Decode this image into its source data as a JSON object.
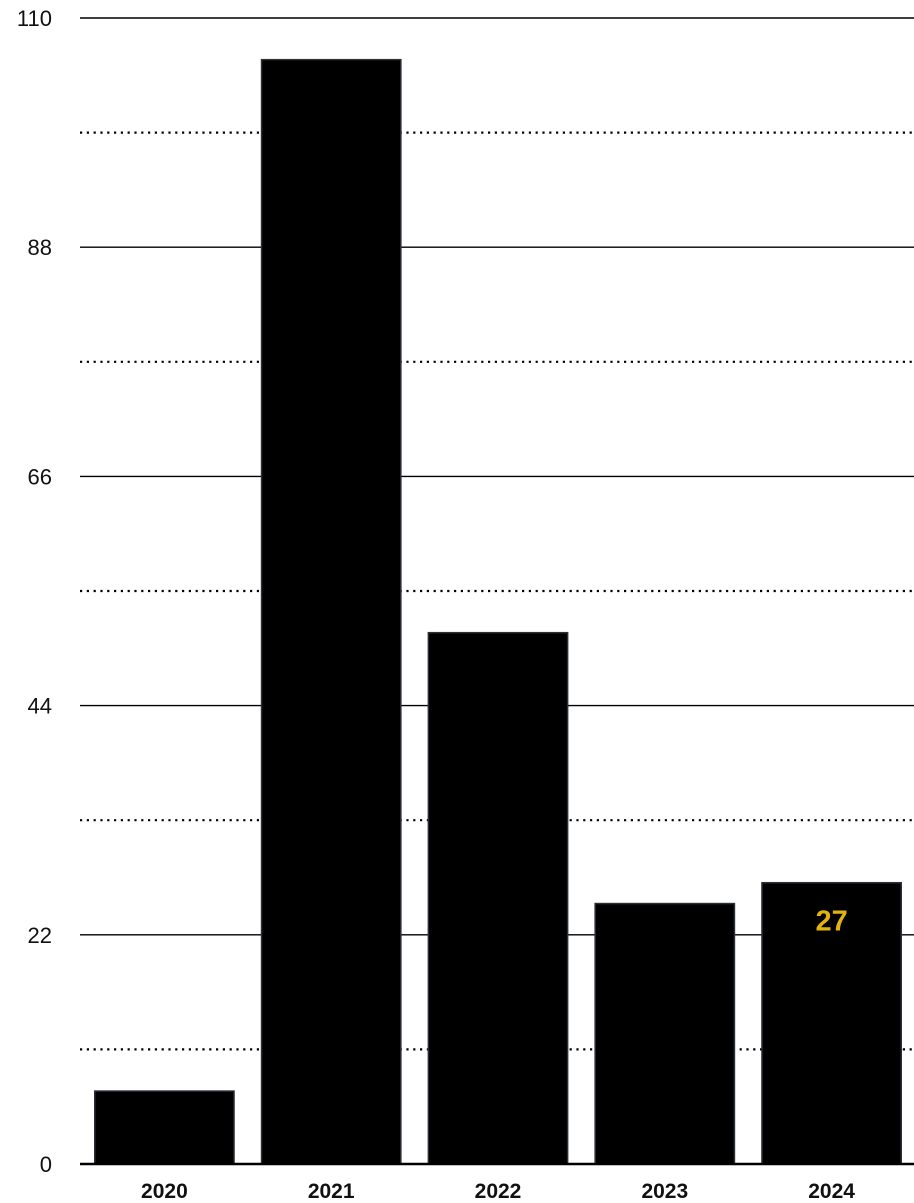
{
  "chart_data": {
    "type": "bar",
    "categories": [
      "2020",
      "2021",
      "2022",
      "2023",
      "2024"
    ],
    "values": [
      7,
      106,
      51,
      25,
      27
    ],
    "title": "",
    "xlabel": "",
    "ylabel": "",
    "ylim": [
      0,
      110
    ],
    "y_ticks": [
      "0",
      "22",
      "44",
      "66",
      "88",
      "110"
    ],
    "y_tick_values": [
      0,
      22,
      44,
      66,
      88,
      110
    ],
    "minor_grid_values": [
      11,
      33,
      55,
      77,
      99
    ],
    "grid": true,
    "legend": "none",
    "data_labels": [
      {
        "category": "2024",
        "text": "27"
      }
    ],
    "colors": {
      "bar": "#000000",
      "bar_stroke": "#2b2f36",
      "grid": "#000000",
      "data_label": "#e2b30f",
      "text": "#111111"
    }
  }
}
